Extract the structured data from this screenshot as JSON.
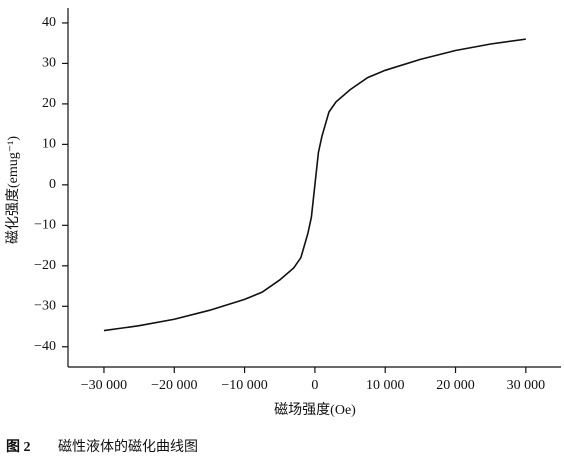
{
  "chart_data": {
    "type": "line",
    "x_label": "磁场强度(Oe)",
    "y_label": "磁化强度(emug⁻¹)",
    "x": [
      -30000,
      -25000,
      -20000,
      -15000,
      -10000,
      -7500,
      -5000,
      -3000,
      -2000,
      -1000,
      -500,
      0,
      500,
      1000,
      2000,
      3000,
      5000,
      7500,
      10000,
      15000,
      20000,
      25000,
      30000
    ],
    "series": [
      {
        "color": "#111111",
        "values": [
          -36.0,
          -34.8,
          -33.2,
          -31.0,
          -28.3,
          -26.5,
          -23.5,
          -20.5,
          -18.0,
          -12.0,
          -8.0,
          0,
          8.0,
          12.0,
          18.0,
          20.5,
          23.5,
          26.5,
          28.3,
          31.0,
          33.2,
          34.8,
          36.0
        ]
      }
    ],
    "xlim": [
      -35000,
      35000
    ],
    "ylim": [
      -45,
      43
    ],
    "xticks": [
      {
        "value": -30000,
        "label": "−30 000"
      },
      {
        "value": -20000,
        "label": "−20 000"
      },
      {
        "value": -10000,
        "label": "−10 000"
      },
      0,
      {
        "value": 10000,
        "label": "10 000"
      },
      {
        "value": 20000,
        "label": "20 000"
      },
      {
        "value": 30000,
        "label": "30 000"
      }
    ],
    "yticks": [
      {
        "value": -40,
        "label": "−40"
      },
      {
        "value": -30,
        "label": "−30"
      },
      {
        "value": -20,
        "label": "−20"
      },
      {
        "value": -10,
        "label": "−10"
      },
      0,
      10,
      20,
      30,
      40
    ],
    "grid": false
  },
  "caption": {
    "number": "图 2",
    "text": "磁性液体的磁化曲线图"
  }
}
